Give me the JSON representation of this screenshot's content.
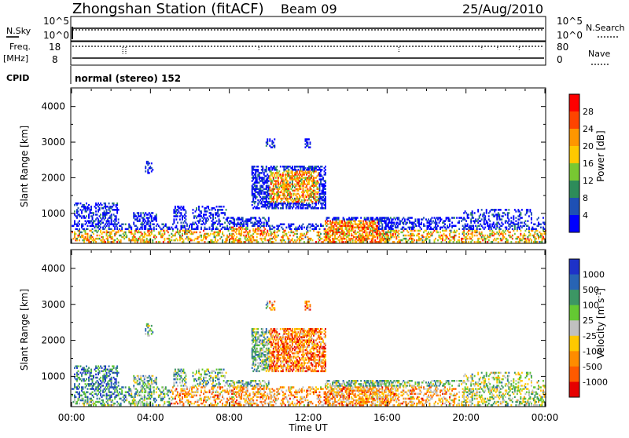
{
  "header": {
    "station": "Zhongshan Station (fitACF)",
    "beam": "Beam 09",
    "date": "25/Aug/2010"
  },
  "nsky_panel": {
    "left_label": "N.Sky",
    "right_label": "N.Search",
    "left_ticks": [
      "10^5",
      "10^0"
    ],
    "right_ticks": [
      "10^5",
      "10^0"
    ]
  },
  "freq_panel": {
    "left_label_line1": "Freq.",
    "left_label_line2": "[MHz]",
    "right_label": "Nave",
    "left_ticks": [
      "18",
      "8"
    ],
    "right_ticks": [
      "80",
      "0"
    ]
  },
  "cpid": {
    "label": "CPID",
    "value": "normal (stereo) 152"
  },
  "time_axis": {
    "title": "Time UT",
    "ticks": [
      "00:00",
      "04:00",
      "08:00",
      "12:00",
      "16:00",
      "20:00",
      "00:00"
    ]
  },
  "chart_data": [
    {
      "type": "heatmap",
      "parameter": "power",
      "xlabel": "Time UT",
      "ylabel": "Slant Range [km]",
      "x_range_hours": [
        0,
        24
      ],
      "ylim": [
        180,
        4500
      ],
      "yticks": [
        1000,
        2000,
        3000,
        4000
      ],
      "colorbar": {
        "label": "Power [dB]",
        "tick_labels": [
          "28",
          "24",
          "20",
          "16",
          "12",
          "8",
          "4"
        ],
        "colors": [
          "#ff0000",
          "#ff4400",
          "#ff9600",
          "#ffc800",
          "#78c832",
          "#2d8c5a",
          "#1e50b4",
          "#0000ff"
        ]
      },
      "cells": [
        [
          0.3,
          2.6,
          180,
          1200,
          0.45,
          "blue-orange"
        ],
        [
          3.2,
          4.4,
          180,
          1200,
          0.5,
          "blue-orange"
        ],
        [
          7.0,
          13.0,
          180,
          2300,
          0.65,
          "orange-red"
        ],
        [
          12.5,
          16.0,
          180,
          700,
          0.7,
          "red"
        ],
        [
          16.0,
          24.0,
          180,
          600,
          0.45,
          "mixed"
        ]
      ]
    },
    {
      "type": "heatmap",
      "parameter": "velocity",
      "xlabel": "Time UT",
      "ylabel": "Slant Range [km]",
      "x_range_hours": [
        0,
        24
      ],
      "ylim": [
        180,
        4500
      ],
      "yticks": [
        1000,
        2000,
        3000,
        4000
      ],
      "colorbar": {
        "label": "Velocity [m s^-1]",
        "tick_labels": [
          "1000",
          "500",
          "100",
          "25",
          "-25",
          "-100",
          "-500",
          "-1000"
        ],
        "colors": [
          "#1e32c8",
          "#2864b4",
          "#3c9664",
          "#64c832",
          "#c0c0c0",
          "#ffc800",
          "#ff8c00",
          "#ff5a00",
          "#e60000"
        ]
      }
    }
  ]
}
